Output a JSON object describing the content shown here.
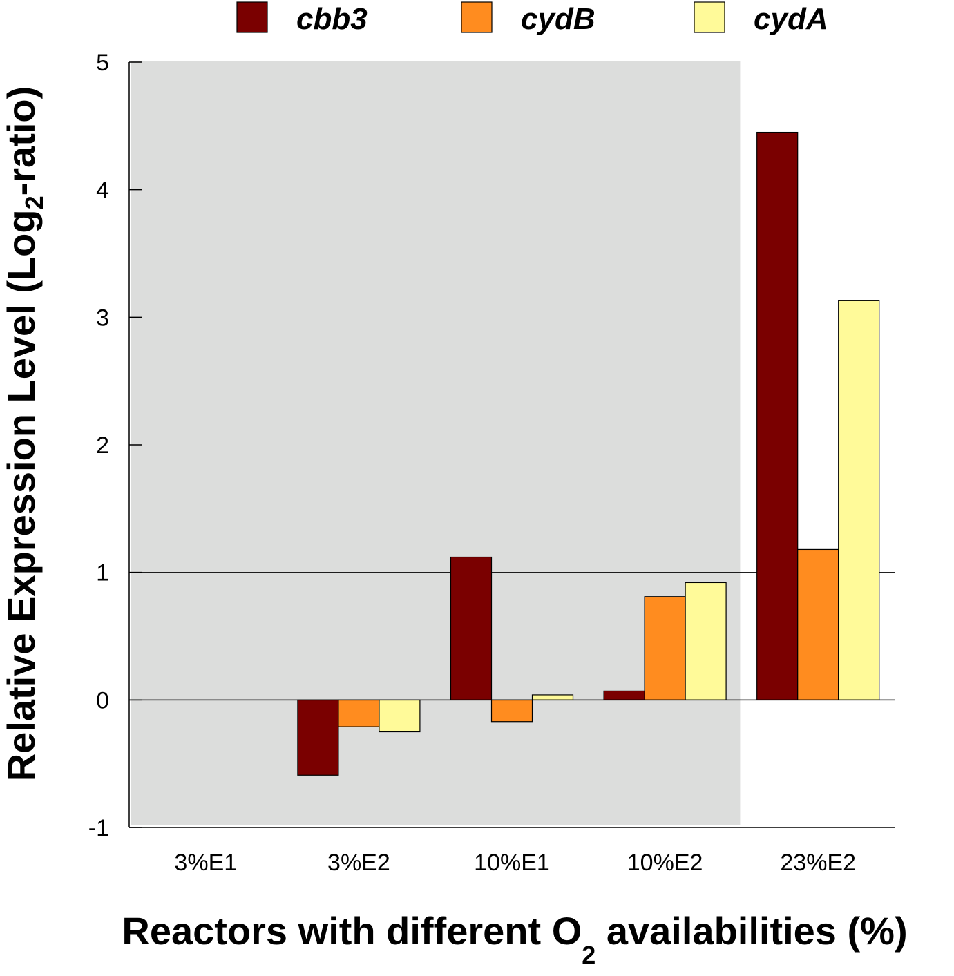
{
  "chart_data": {
    "type": "bar",
    "categories": [
      "3%E1",
      "3%E2",
      "10%E1",
      "10%E2",
      "23%E2"
    ],
    "series": [
      {
        "name": "cbb3",
        "color": "#7a0000",
        "values": [
          0,
          -0.59,
          1.12,
          0.07,
          4.45
        ]
      },
      {
        "name": "cydB",
        "color": "#ff8c1f",
        "values": [
          0,
          -0.21,
          -0.17,
          0.81,
          1.18
        ]
      },
      {
        "name": "cydA",
        "color": "#fffa99",
        "values": [
          0,
          -0.25,
          0.04,
          0.92,
          3.13
        ]
      }
    ],
    "ylim": [
      -1,
      5
    ],
    "yticks": [
      "5",
      "4",
      "3",
      "2",
      "1",
      "0",
      "-1"
    ],
    "ytick_values": [
      5,
      4,
      3,
      2,
      1,
      0,
      -1
    ],
    "reference_line": 1,
    "shaded_region": {
      "from_category": "3%E1",
      "to_category": "10%E2",
      "color": "#dcdddc"
    },
    "xlabel": {
      "main": "Reactors with different O",
      "sub": "2",
      "tail": " availabilities (%)"
    },
    "ylabel": {
      "main": "Relative Expression Level (Log",
      "sub": "2",
      "tail": "-ratio)"
    },
    "legend_position": "top"
  }
}
